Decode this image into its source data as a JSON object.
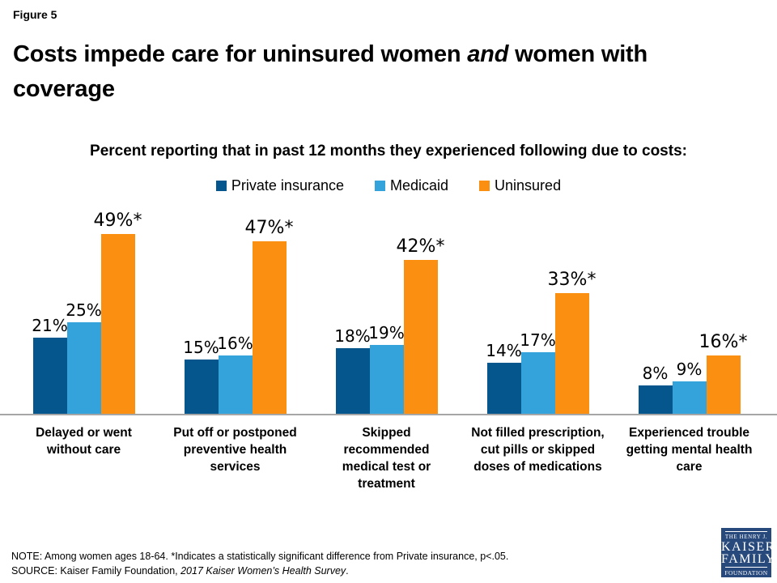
{
  "header": {
    "figure_label": "Figure 5",
    "title_pre": "Costs impede care for uninsured women ",
    "title_italic": "and",
    "title_post": " women with",
    "title_line2": "coverage"
  },
  "subtitle": "Percent reporting that in past 12 months they experienced following due to costs:",
  "chart_data": {
    "type": "bar",
    "title": "Costs impede care for uninsured women and women with coverage",
    "subtitle": "Percent reporting that in past 12 months they experienced following due to costs:",
    "categories": [
      [
        "Delayed or went",
        "without care"
      ],
      [
        "Put off or postponed",
        "preventive health",
        "services"
      ],
      [
        "Skipped",
        "recommended",
        "medical test or",
        "treatment"
      ],
      [
        "Not filled prescription,",
        "cut pills or skipped",
        "doses of medications"
      ],
      [
        "Experienced trouble",
        "getting mental health",
        "care"
      ]
    ],
    "series": [
      {
        "name": "Private insurance",
        "color": "#04568D",
        "values": [
          21,
          15,
          18,
          14,
          8
        ],
        "labels": [
          "21%",
          "15%",
          "18%",
          "14%",
          "8%"
        ]
      },
      {
        "name": "Medicaid",
        "color": "#34A3DC",
        "values": [
          25,
          16,
          19,
          17,
          9
        ],
        "labels": [
          "25%",
          "16%",
          "19%",
          "17%",
          "9%"
        ]
      },
      {
        "name": "Uninsured",
        "color": "#FB8F11",
        "values": [
          49,
          47,
          42,
          33,
          16
        ],
        "labels": [
          "49%*",
          "47%*",
          "42%*",
          "33%*",
          "16%*"
        ]
      }
    ],
    "ylim": [
      0,
      55
    ],
    "grid": false,
    "legend_position": "top-center",
    "axis_line_color": "#A6A6A6"
  },
  "footer": {
    "note_prefix": "NOTE:",
    "note_text": " Among women ages 18-64. *Indicates a statistically significant difference from Private insurance, p<.05.",
    "source_prefix": "SOURCE:",
    "source_text": " Kaiser Family Foundation, ",
    "source_italic": "2017 Kaiser Women’s Health Survey",
    "source_suffix": "."
  },
  "logo": {
    "line1": "THE HENRY J.",
    "line2": "KAISER",
    "line3": "FAMILY",
    "line4": "FOUNDATION",
    "bg_color": "#27497B"
  }
}
